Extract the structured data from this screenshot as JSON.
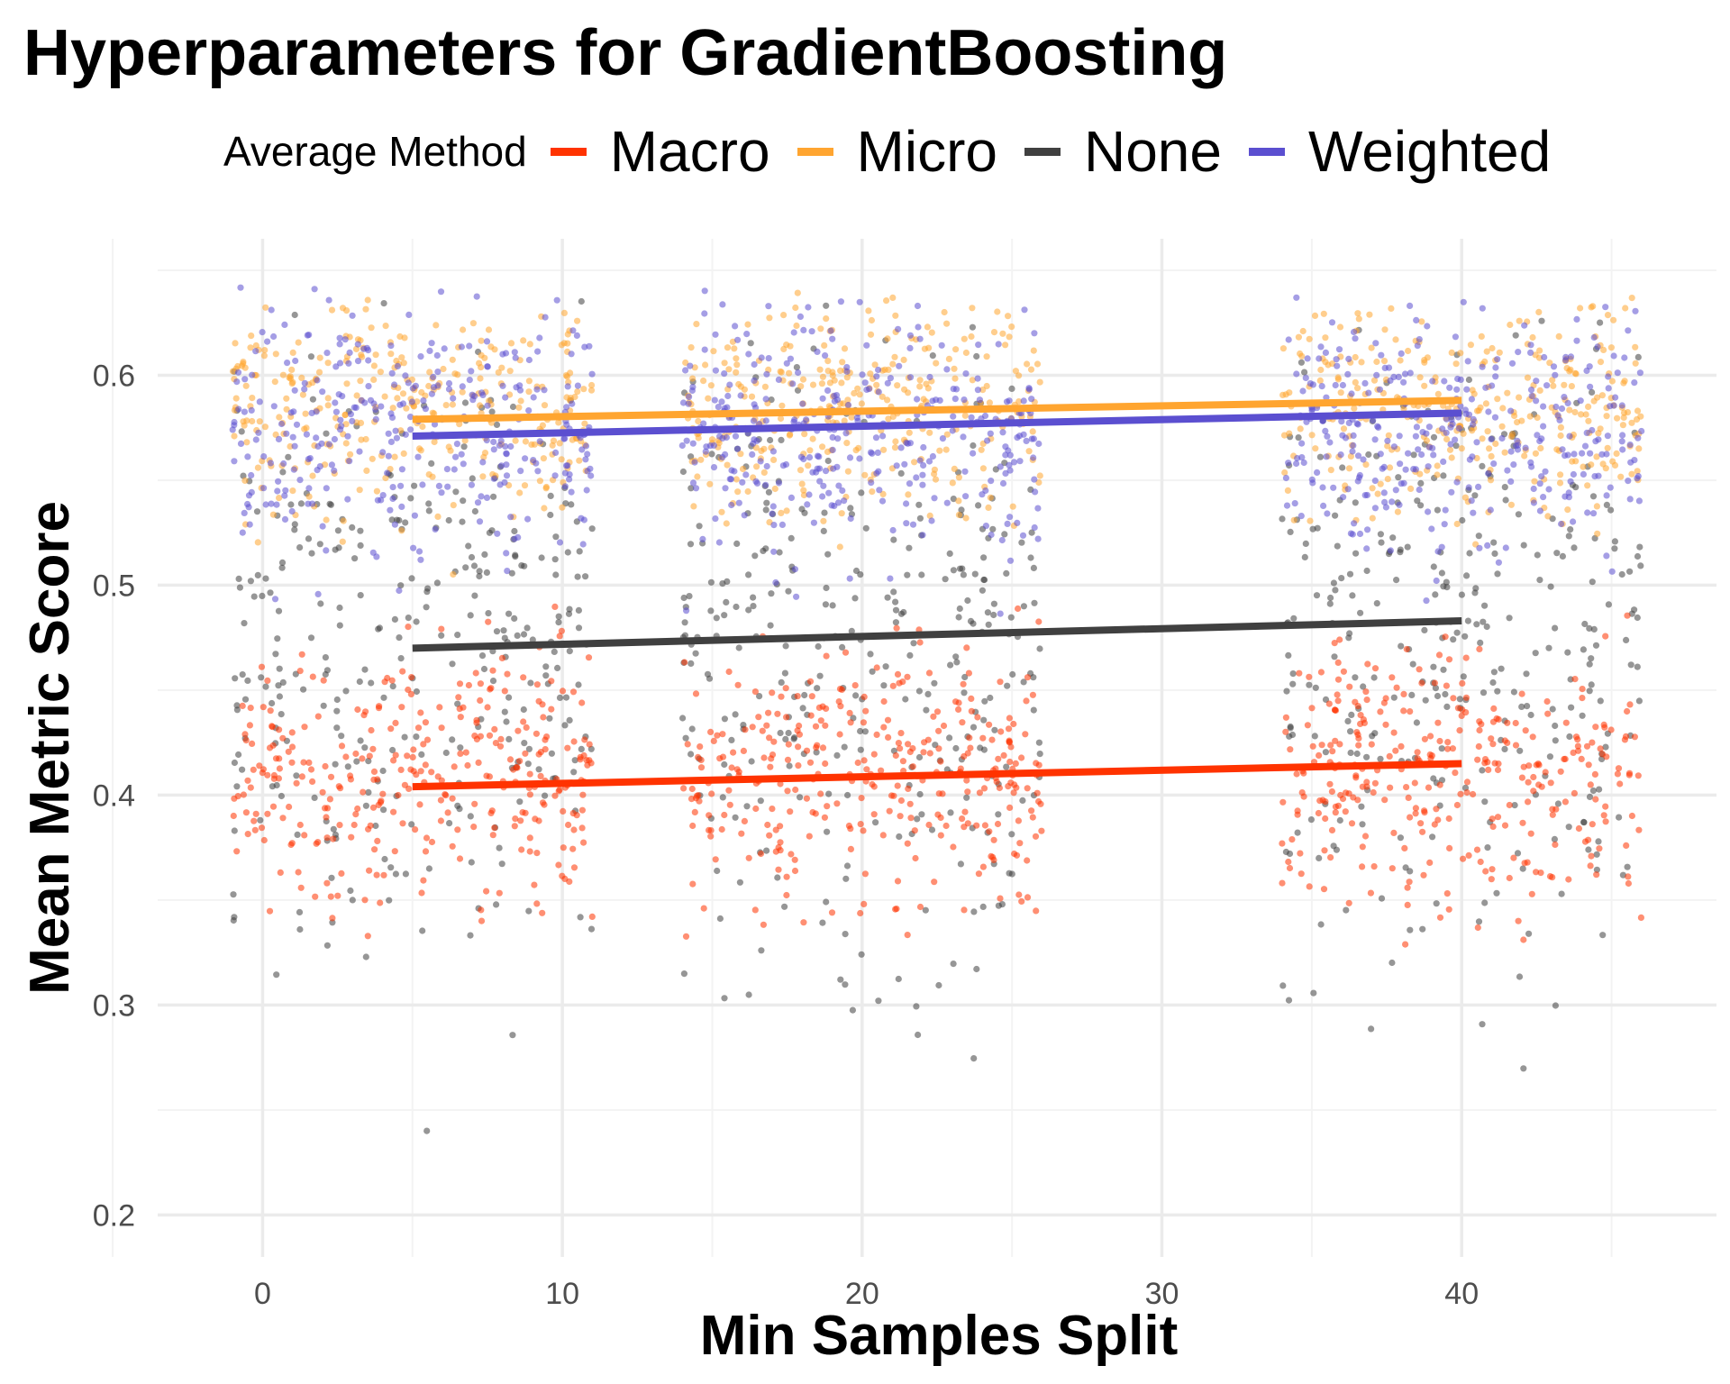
{
  "chart_data": {
    "type": "scatter",
    "title": "Hyperparameters for GradientBoosting",
    "xlabel": "Min Samples Split",
    "ylabel": "Mean Metric Score",
    "xlim": [
      -3.5,
      48.5
    ],
    "ylim": [
      0.18,
      0.665
    ],
    "x_ticks": [
      0,
      10,
      20,
      30,
      40
    ],
    "y_ticks": [
      0.2,
      0.3,
      0.4,
      0.5,
      0.6
    ],
    "y_tick_labels": [
      "0.2",
      "0.3",
      "0.4",
      "0.5",
      "0.6"
    ],
    "x_tick_labels": [
      "0",
      "10",
      "20",
      "30",
      "40"
    ],
    "grid": true,
    "legend": {
      "title": "Average Method",
      "position": "top"
    },
    "x_groups": [
      5,
      20,
      40
    ],
    "jitter_width": 6,
    "series": [
      {
        "name": "Macro",
        "color": "#FF3300",
        "point_center": 0.41,
        "point_spread": 0.03,
        "point_min": 0.265,
        "point_max": 0.5,
        "trend": {
          "x": [
            5,
            40
          ],
          "y": [
            0.404,
            0.415
          ]
        }
      },
      {
        "name": "Micro",
        "color": "#FFA530",
        "point_center": 0.585,
        "point_spread": 0.025,
        "point_min": 0.445,
        "point_max": 0.64,
        "trend": {
          "x": [
            5,
            40
          ],
          "y": [
            0.579,
            0.588
          ]
        }
      },
      {
        "name": "None",
        "color": "#404040",
        "point_center": 0.47,
        "point_spread": 0.075,
        "point_min": 0.195,
        "point_max": 0.645,
        "trend": {
          "x": [
            5,
            40
          ],
          "y": [
            0.47,
            0.483
          ]
        }
      },
      {
        "name": "Weighted",
        "color": "#5B4FD0",
        "point_center": 0.575,
        "point_spread": 0.03,
        "point_min": 0.445,
        "point_max": 0.645,
        "trend": {
          "x": [
            5,
            40
          ],
          "y": [
            0.571,
            0.582
          ]
        }
      }
    ]
  }
}
